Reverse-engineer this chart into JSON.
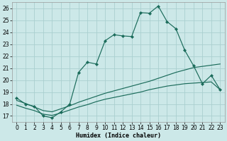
{
  "xlabel": "Humidex (Indice chaleur)",
  "bg_color": "#cce8e8",
  "line_color": "#1a6b5a",
  "grid_color": "#aacfcf",
  "xlim": [
    -0.5,
    23.5
  ],
  "ylim": [
    16.5,
    26.5
  ],
  "xticks": [
    0,
    1,
    2,
    3,
    4,
    5,
    6,
    7,
    8,
    9,
    10,
    11,
    12,
    13,
    14,
    15,
    16,
    17,
    18,
    19,
    20,
    21,
    22,
    23
  ],
  "yticks": [
    17,
    18,
    19,
    20,
    21,
    22,
    23,
    24,
    25,
    26
  ],
  "line1_x": [
    0,
    1,
    2,
    3,
    4,
    5,
    6,
    7,
    8,
    9,
    10,
    11,
    12,
    13,
    14,
    15,
    16,
    17,
    18,
    19,
    20,
    21,
    22,
    23
  ],
  "line1_y": [
    18.5,
    18.0,
    17.8,
    17.0,
    16.85,
    17.35,
    18.0,
    20.65,
    21.5,
    21.35,
    23.3,
    23.8,
    23.7,
    23.65,
    25.65,
    25.6,
    26.2,
    24.9,
    24.3,
    22.5,
    21.2,
    19.7,
    20.4,
    19.2
  ],
  "line2_x": [
    0,
    1,
    2,
    3,
    4,
    5,
    6,
    7,
    8,
    9,
    10,
    11,
    12,
    13,
    14,
    15,
    16,
    17,
    18,
    19,
    20,
    21,
    22,
    23
  ],
  "line2_y": [
    18.3,
    18.05,
    17.75,
    17.45,
    17.35,
    17.6,
    17.85,
    18.15,
    18.4,
    18.65,
    18.9,
    19.1,
    19.3,
    19.5,
    19.7,
    19.9,
    20.15,
    20.4,
    20.65,
    20.85,
    21.05,
    21.15,
    21.25,
    21.35
  ],
  "line3_x": [
    0,
    1,
    2,
    3,
    4,
    5,
    6,
    7,
    8,
    9,
    10,
    11,
    12,
    13,
    14,
    15,
    16,
    17,
    18,
    19,
    20,
    21,
    22,
    23
  ],
  "line3_y": [
    17.9,
    17.65,
    17.45,
    17.15,
    17.05,
    17.25,
    17.5,
    17.75,
    17.95,
    18.2,
    18.4,
    18.55,
    18.7,
    18.85,
    19.0,
    19.2,
    19.35,
    19.5,
    19.6,
    19.7,
    19.75,
    19.8,
    19.85,
    19.2
  ]
}
